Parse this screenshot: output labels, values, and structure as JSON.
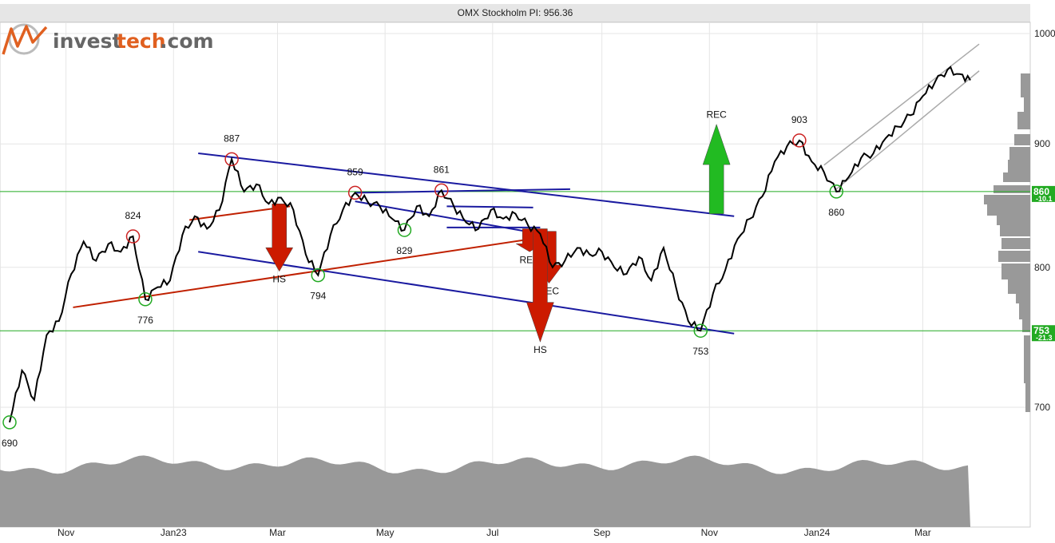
{
  "header": {
    "title": "OMX Stockholm PI: 956.36"
  },
  "logo": {
    "text_a": "invest",
    "text_b": "tech",
    "text_c": ".com"
  },
  "colors": {
    "price": "#000000",
    "support_line": "#22aa22",
    "trend_blue": "#1a1aa0",
    "trend_red": "#c02000",
    "arrow_up": "#22bb22",
    "arrow_down": "#cc1a00",
    "volume": "#999999",
    "grid": "#e6e6e6",
    "top_marker": "#cc2222",
    "bottom_marker": "#22aa22"
  },
  "chart_data": {
    "type": "line",
    "title": "OMX Stockholm PI: 956.36",
    "x_tick_labels": [
      "Nov",
      "Jan23",
      "Mar",
      "May",
      "Jul",
      "Sep",
      "Nov",
      "Jan24",
      "Mar"
    ],
    "y_tick_labels": [
      "700",
      "800",
      "900",
      "1000"
    ],
    "y_scale": "log",
    "ylim": [
      650,
      1000
    ],
    "last_value": 956.36,
    "series": [
      {
        "values": [
          {
            "x": "2022-09-30",
            "y": 690
          },
          {
            "x": "2022-10-07",
            "y": 725
          },
          {
            "x": "2022-10-14",
            "y": 705
          },
          {
            "x": "2022-10-21",
            "y": 750
          },
          {
            "x": "2022-10-28",
            "y": 760
          },
          {
            "x": "2022-11-04",
            "y": 795
          },
          {
            "x": "2022-11-11",
            "y": 820
          },
          {
            "x": "2022-11-18",
            "y": 805
          },
          {
            "x": "2022-11-25",
            "y": 818
          },
          {
            "x": "2022-12-02",
            "y": 812
          },
          {
            "x": "2022-12-09",
            "y": 824
          },
          {
            "x": "2022-12-16",
            "y": 776
          },
          {
            "x": "2022-12-23",
            "y": 785
          },
          {
            "x": "2022-12-30",
            "y": 790
          },
          {
            "x": "2023-01-06",
            "y": 825
          },
          {
            "x": "2023-01-13",
            "y": 840
          },
          {
            "x": "2023-01-20",
            "y": 830
          },
          {
            "x": "2023-01-27",
            "y": 845
          },
          {
            "x": "2023-02-03",
            "y": 887
          },
          {
            "x": "2023-02-10",
            "y": 860
          },
          {
            "x": "2023-02-17",
            "y": 866
          },
          {
            "x": "2023-02-24",
            "y": 850
          },
          {
            "x": "2023-03-03",
            "y": 855
          },
          {
            "x": "2023-03-10",
            "y": 845
          },
          {
            "x": "2023-03-17",
            "y": 810
          },
          {
            "x": "2023-03-24",
            "y": 794
          },
          {
            "x": "2023-03-31",
            "y": 825
          },
          {
            "x": "2023-04-07",
            "y": 845
          },
          {
            "x": "2023-04-14",
            "y": 859
          },
          {
            "x": "2023-04-21",
            "y": 852
          },
          {
            "x": "2023-04-28",
            "y": 848
          },
          {
            "x": "2023-05-05",
            "y": 838
          },
          {
            "x": "2023-05-12",
            "y": 829
          },
          {
            "x": "2023-05-19",
            "y": 848
          },
          {
            "x": "2023-05-26",
            "y": 840
          },
          {
            "x": "2023-06-02",
            "y": 861
          },
          {
            "x": "2023-06-09",
            "y": 848
          },
          {
            "x": "2023-06-16",
            "y": 835
          },
          {
            "x": "2023-06-23",
            "y": 830
          },
          {
            "x": "2023-06-30",
            "y": 845
          },
          {
            "x": "2023-07-07",
            "y": 838
          },
          {
            "x": "2023-07-14",
            "y": 842
          },
          {
            "x": "2023-07-21",
            "y": 833
          },
          {
            "x": "2023-07-28",
            "y": 826
          },
          {
            "x": "2023-08-04",
            "y": 800
          },
          {
            "x": "2023-08-11",
            "y": 805
          },
          {
            "x": "2023-08-18",
            "y": 815
          },
          {
            "x": "2023-08-25",
            "y": 810
          },
          {
            "x": "2023-09-01",
            "y": 812
          },
          {
            "x": "2023-09-08",
            "y": 800
          },
          {
            "x": "2023-09-15",
            "y": 795
          },
          {
            "x": "2023-09-22",
            "y": 808
          },
          {
            "x": "2023-09-29",
            "y": 790
          },
          {
            "x": "2023-10-06",
            "y": 815
          },
          {
            "x": "2023-10-13",
            "y": 785
          },
          {
            "x": "2023-10-20",
            "y": 760
          },
          {
            "x": "2023-10-27",
            "y": 753
          },
          {
            "x": "2023-11-03",
            "y": 780
          },
          {
            "x": "2023-11-10",
            "y": 798
          },
          {
            "x": "2023-11-17",
            "y": 822
          },
          {
            "x": "2023-11-24",
            "y": 838
          },
          {
            "x": "2023-12-01",
            "y": 856
          },
          {
            "x": "2023-12-08",
            "y": 885
          },
          {
            "x": "2023-12-15",
            "y": 898
          },
          {
            "x": "2023-12-22",
            "y": 903
          },
          {
            "x": "2023-12-29",
            "y": 885
          },
          {
            "x": "2024-01-05",
            "y": 876
          },
          {
            "x": "2024-01-12",
            "y": 860
          },
          {
            "x": "2024-01-19",
            "y": 872
          },
          {
            "x": "2024-01-26",
            "y": 888
          },
          {
            "x": "2024-02-02",
            "y": 892
          },
          {
            "x": "2024-02-09",
            "y": 905
          },
          {
            "x": "2024-02-16",
            "y": 915
          },
          {
            "x": "2024-02-23",
            "y": 925
          },
          {
            "x": "2024-03-01",
            "y": 942
          },
          {
            "x": "2024-03-08",
            "y": 955
          },
          {
            "x": "2024-03-15",
            "y": 966
          },
          {
            "x": "2024-03-22",
            "y": 962
          },
          {
            "x": "2024-03-28",
            "y": 956.36
          }
        ]
      }
    ],
    "point_labels": [
      {
        "x": "2022-09-30",
        "value": 690,
        "text": "690",
        "kind": "bottom"
      },
      {
        "x": "2022-12-09",
        "value": 824,
        "text": "824",
        "kind": "top"
      },
      {
        "x": "2022-12-16",
        "value": 776,
        "text": "776",
        "kind": "bottom"
      },
      {
        "x": "2023-02-03",
        "value": 887,
        "text": "887",
        "kind": "top"
      },
      {
        "x": "2023-03-24",
        "value": 794,
        "text": "794",
        "kind": "bottom"
      },
      {
        "x": "2023-04-14",
        "value": 859,
        "text": "859",
        "kind": "top"
      },
      {
        "x": "2023-05-12",
        "value": 829,
        "text": "829",
        "kind": "bottom"
      },
      {
        "x": "2023-06-02",
        "value": 861,
        "text": "861",
        "kind": "top"
      },
      {
        "x": "2023-10-27",
        "value": 753,
        "text": "753",
        "kind": "bottom"
      },
      {
        "x": "2023-12-22",
        "value": 903,
        "text": "903",
        "kind": "top"
      },
      {
        "x": "2024-01-12",
        "value": 860,
        "text": "860",
        "kind": "bottom"
      }
    ],
    "support_levels": [
      {
        "value": 860,
        "label": "860",
        "pct": "-10.1"
      },
      {
        "value": 753,
        "label": "753",
        "pct": "-21.3"
      }
    ],
    "trend_lines": [
      {
        "color": "blue",
        "from": {
          "x": "2023-01-15",
          "y": 892
        },
        "to": {
          "x": "2023-11-15",
          "y": 840
        }
      },
      {
        "color": "blue",
        "from": {
          "x": "2023-01-15",
          "y": 812
        },
        "to": {
          "x": "2023-11-15",
          "y": 751
        }
      },
      {
        "color": "blue",
        "from": {
          "x": "2023-04-14",
          "y": 859
        },
        "to": {
          "x": "2023-08-14",
          "y": 862
        }
      },
      {
        "color": "blue",
        "from": {
          "x": "2023-04-14",
          "y": 852
        },
        "to": {
          "x": "2023-07-28",
          "y": 826
        }
      },
      {
        "color": "blue",
        "from": {
          "x": "2023-06-05",
          "y": 848
        },
        "to": {
          "x": "2023-07-24",
          "y": 847
        }
      },
      {
        "color": "blue",
        "from": {
          "x": "2023-06-05",
          "y": 831
        },
        "to": {
          "x": "2023-07-28",
          "y": 831
        }
      },
      {
        "color": "red",
        "from": {
          "x": "2022-11-05",
          "y": 770
        },
        "to": {
          "x": "2023-07-28",
          "y": 823
        }
      },
      {
        "color": "red",
        "from": {
          "x": "2023-01-10",
          "y": 837
        },
        "to": {
          "x": "2023-03-08",
          "y": 848
        }
      },
      {
        "color": "gray",
        "from": {
          "x": "2024-01-05",
          "y": 882
        },
        "to": {
          "x": "2024-04-02",
          "y": 990
        }
      },
      {
        "color": "gray",
        "from": {
          "x": "2024-01-12",
          "y": 862
        },
        "to": {
          "x": "2024-04-02",
          "y": 965
        }
      }
    ],
    "signals": [
      {
        "direction": "down",
        "label": "HS",
        "x": "2023-03-02",
        "from": 850,
        "to": 797
      },
      {
        "direction": "down",
        "label": "REC",
        "x": "2023-07-22",
        "from": 830,
        "to": 812
      },
      {
        "direction": "down",
        "label": "REC",
        "x": "2023-08-02",
        "from": 828,
        "to": 788
      },
      {
        "direction": "down",
        "label": "HS",
        "x": "2023-07-28",
        "from": 830,
        "to": 745
      },
      {
        "direction": "up",
        "label": "REC",
        "x": "2023-11-05",
        "from": 842,
        "to": 917
      }
    ]
  }
}
